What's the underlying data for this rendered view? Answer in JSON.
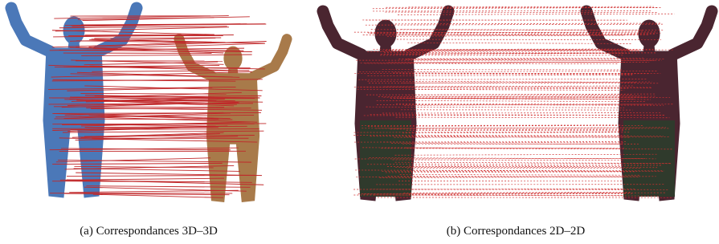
{
  "figure": {
    "subfigures": [
      {
        "caption": "(a) Correspondances 3D–3D"
      },
      {
        "caption": "(b) Correspondances 2D–2D"
      }
    ]
  }
}
